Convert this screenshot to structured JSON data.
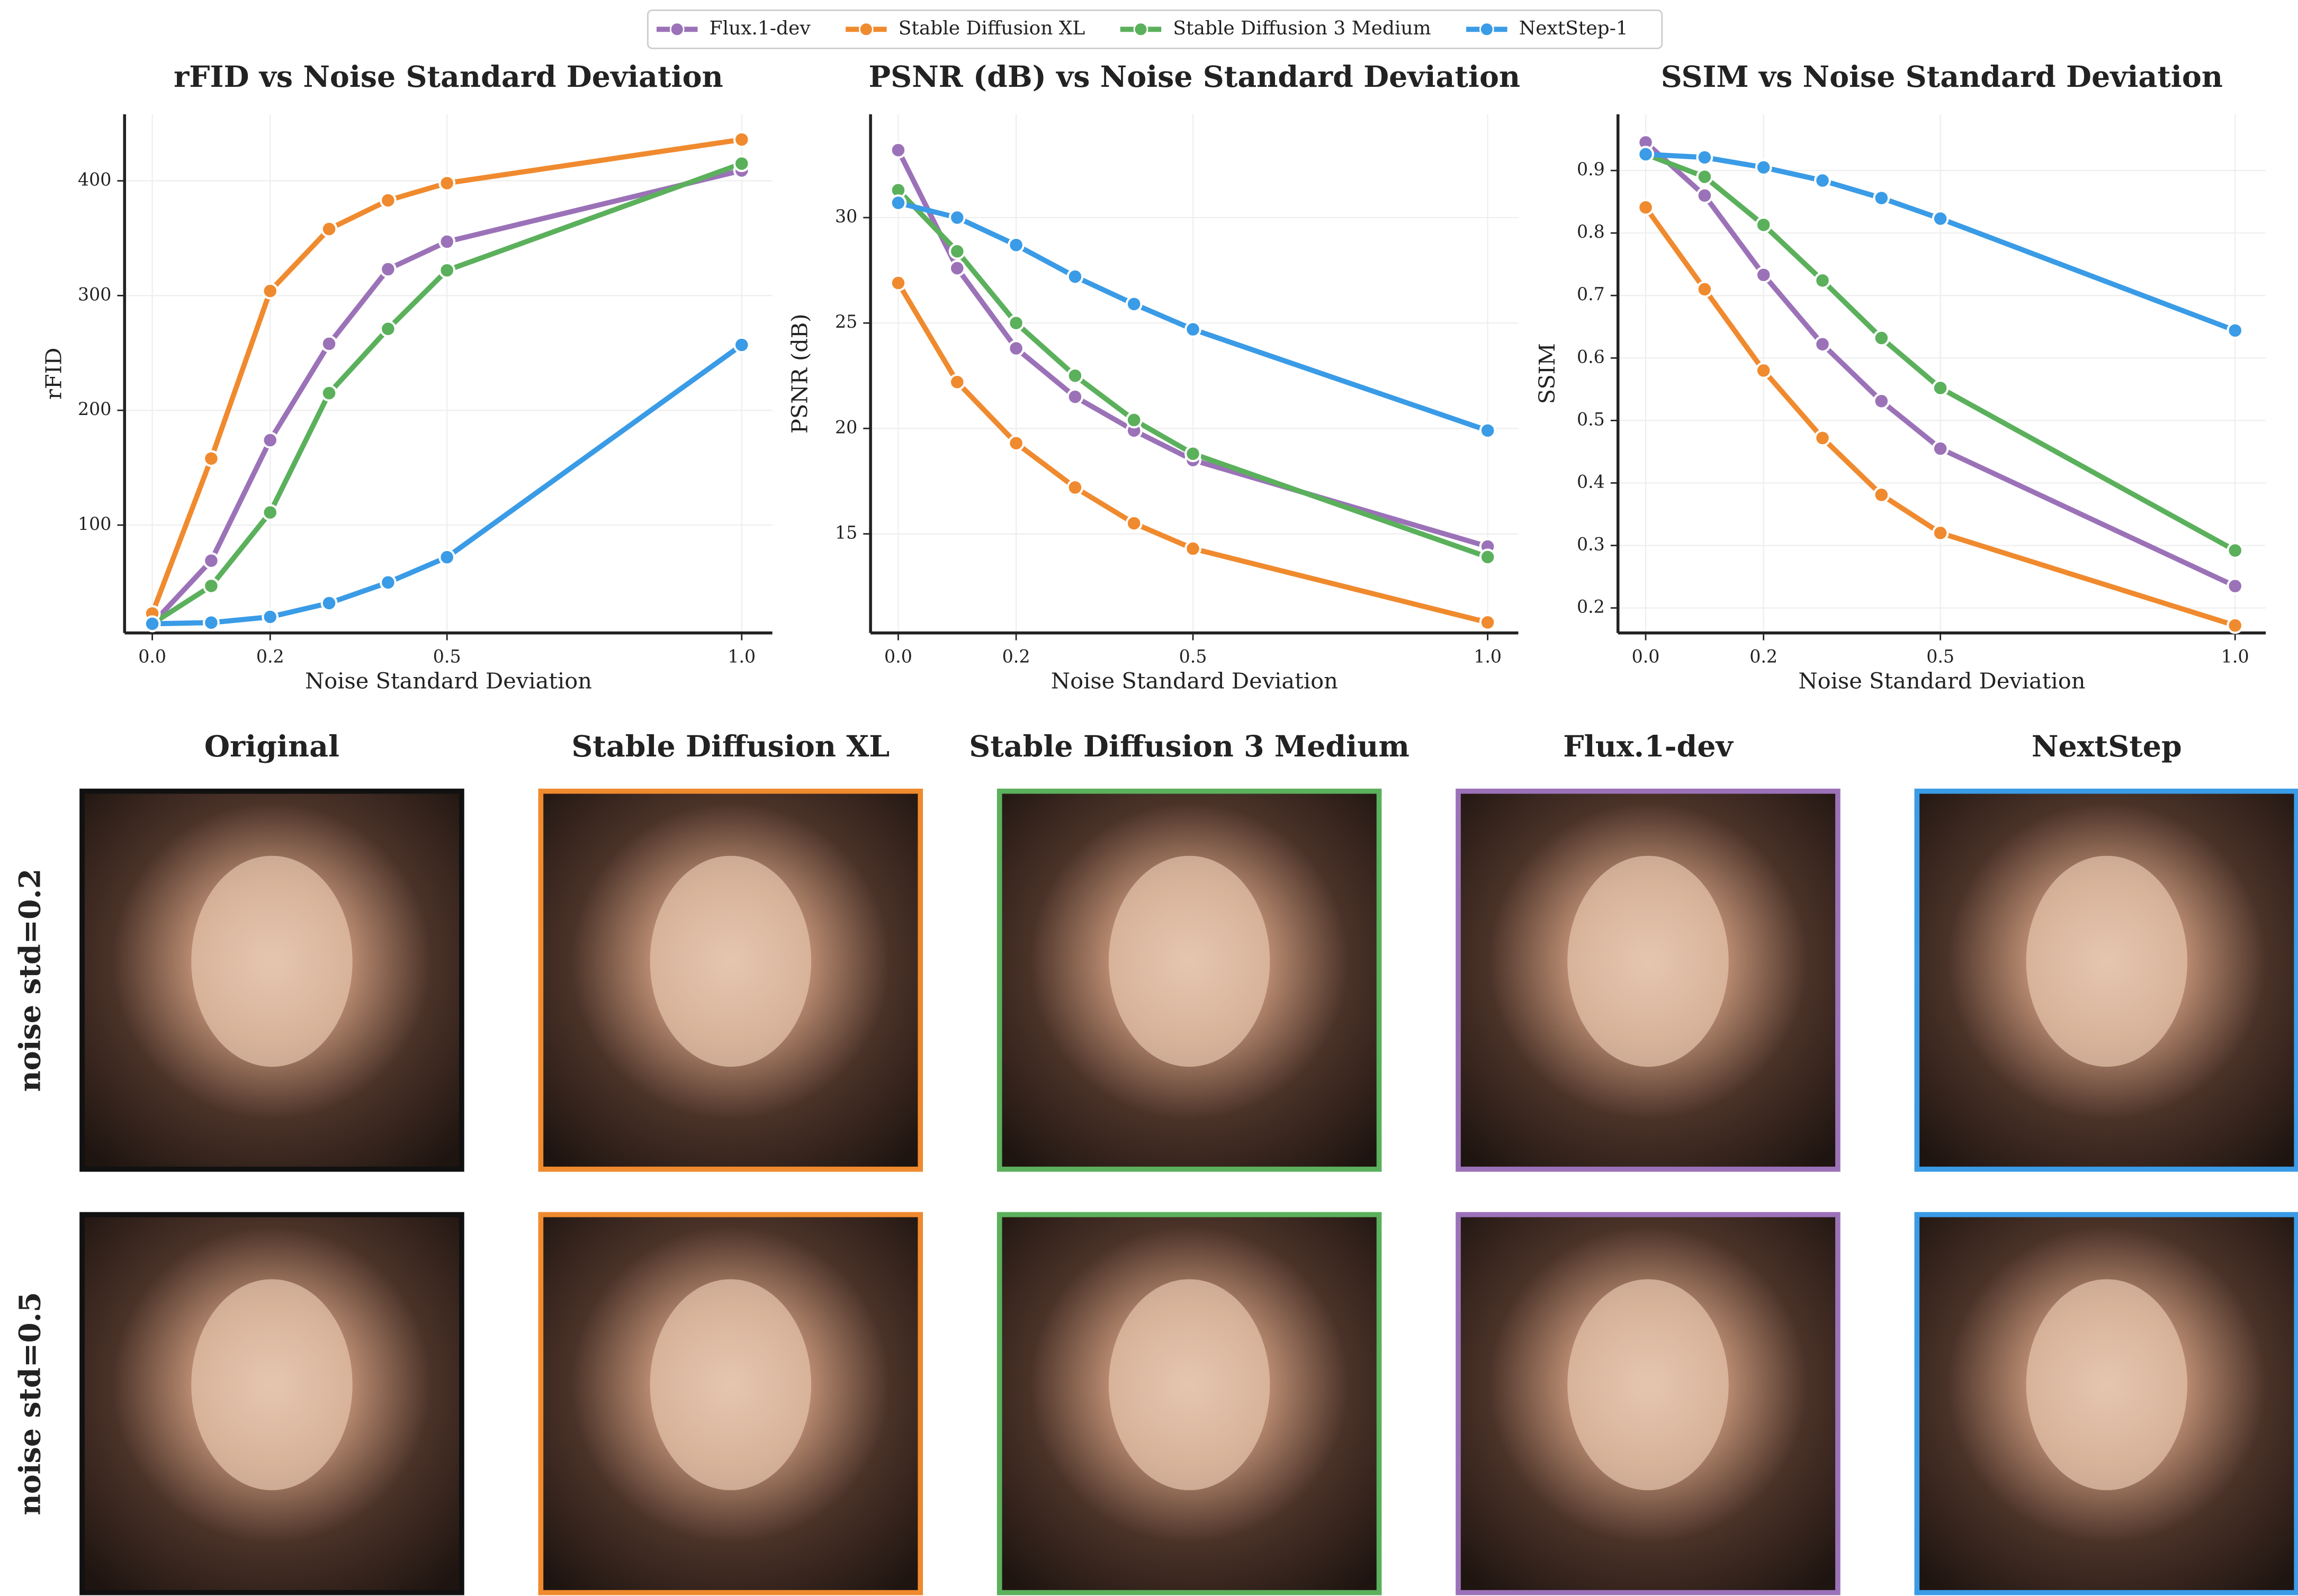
{
  "chart_data": [
    {
      "type": "line",
      "title": "rFID vs Noise Standard Deviation",
      "xlabel": "Noise Standard Deviation",
      "ylabel": "rFID",
      "x": [
        0,
        0.1,
        0.2,
        0.3,
        0.4,
        0.5,
        1.0
      ],
      "xlim": [
        -0.047,
        1.052
      ],
      "xticks": [
        {
          "value": 0,
          "label": "0.0"
        },
        0.2,
        0.5,
        {
          "value": 1,
          "label": "1.0"
        }
      ],
      "ylim": [
        6,
        458
      ],
      "yticks": [
        100,
        200,
        300,
        400
      ],
      "grid": true,
      "series": [
        {
          "name": "Flux.1-dev",
          "color": "#9b72b8",
          "values": [
            14,
            69,
            174,
            258,
            323,
            347,
            409
          ]
        },
        {
          "name": "Stable Diffusion XL",
          "color": "#f08a2e",
          "values": [
            23,
            158,
            304,
            358,
            383,
            398,
            436
          ]
        },
        {
          "name": "Stable Diffusion 3 Medium",
          "color": "#5bb05c",
          "values": [
            14,
            47,
            111,
            215,
            271,
            322,
            415
          ]
        },
        {
          "name": "NextStep-1",
          "color": "#3a9be6",
          "values": [
            14,
            15,
            20,
            32,
            50,
            72,
            257
          ]
        }
      ]
    },
    {
      "type": "line",
      "title": "PSNR (dB) vs Noise Standard Deviation",
      "xlabel": "Noise Standard Deviation",
      "ylabel": "PSNR (dB)",
      "x": [
        0,
        0.1,
        0.2,
        0.3,
        0.4,
        0.5,
        1.0
      ],
      "xlim": [
        -0.047,
        1.052
      ],
      "xticks": [
        {
          "value": 0,
          "label": "0.0"
        },
        0.2,
        0.5,
        {
          "value": 1,
          "label": "1.0"
        }
      ],
      "ylim": [
        10.3,
        34.9
      ],
      "yticks": [
        15,
        20,
        25,
        30
      ],
      "grid": true,
      "series": [
        {
          "name": "Flux.1-dev",
          "color": "#9b72b8",
          "values": [
            33.2,
            27.6,
            23.8,
            21.5,
            19.9,
            18.5,
            14.4
          ]
        },
        {
          "name": "Stable Diffusion XL",
          "color": "#f08a2e",
          "values": [
            26.9,
            22.2,
            19.3,
            17.2,
            15.5,
            14.3,
            10.8
          ]
        },
        {
          "name": "Stable Diffusion 3 Medium",
          "color": "#5bb05c",
          "values": [
            31.3,
            28.4,
            25.0,
            22.5,
            20.4,
            18.8,
            13.9
          ]
        },
        {
          "name": "NextStep-1",
          "color": "#3a9be6",
          "values": [
            30.7,
            30.0,
            28.7,
            27.2,
            25.9,
            24.7,
            19.9
          ]
        }
      ]
    },
    {
      "type": "line",
      "title": "SSIM vs Noise Standard Deviation",
      "xlabel": "Noise Standard Deviation",
      "ylabel": "SSIM",
      "x": [
        0,
        0.1,
        0.2,
        0.3,
        0.4,
        0.5,
        1.0
      ],
      "xlim": [
        -0.047,
        1.052
      ],
      "xticks": [
        {
          "value": 0,
          "label": "0.0"
        },
        0.2,
        0.5,
        {
          "value": 1,
          "label": "1.0"
        }
      ],
      "ylim": [
        0.16,
        0.99
      ],
      "yticks": [
        0.2,
        0.3,
        0.4,
        0.5,
        0.6,
        0.7,
        0.8,
        0.9
      ],
      "grid": true,
      "series": [
        {
          "name": "Flux.1-dev",
          "color": "#9b72b8",
          "values": [
            0.945,
            0.86,
            0.733,
            0.622,
            0.531,
            0.455,
            0.235
          ]
        },
        {
          "name": "Stable Diffusion XL",
          "color": "#f08a2e",
          "values": [
            0.841,
            0.71,
            0.58,
            0.472,
            0.381,
            0.32,
            0.172
          ]
        },
        {
          "name": "Stable Diffusion 3 Medium",
          "color": "#5bb05c",
          "values": [
            0.926,
            0.89,
            0.813,
            0.724,
            0.632,
            0.552,
            0.292
          ]
        },
        {
          "name": "NextStep-1",
          "color": "#3a9be6",
          "values": [
            0.926,
            0.921,
            0.905,
            0.884,
            0.856,
            0.823,
            0.644
          ]
        }
      ]
    }
  ],
  "image_grid": {
    "columns": [
      "Original",
      "Stable Diffusion XL",
      "Stable Diffusion 3 Medium",
      "Flux.1-dev",
      "NextStep"
    ],
    "frame_colors": [
      "#111111",
      "#f08a2e",
      "#5bb05c",
      "#9b72b8",
      "#3a9be6"
    ],
    "rows": [
      "noise std=0.2",
      "noise std=0.5"
    ]
  }
}
